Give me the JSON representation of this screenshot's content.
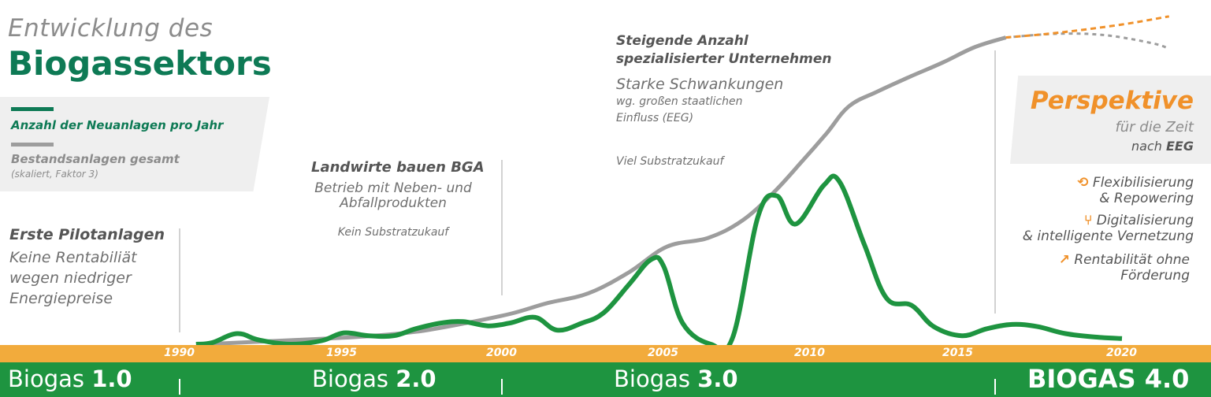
{
  "header": {
    "title_line1": "Entwicklung des",
    "title_line2": "Biogassektors"
  },
  "legend": {
    "new_label": "Anzahl der Neuanlagen pro Jahr",
    "total_label": "Bestandsanlagen gesamt",
    "total_note": "(skaliert, Faktor 3)"
  },
  "annotations": {
    "pilot": {
      "heading": "Erste Pilotanlagen",
      "lines": [
        "Keine Rentabiliät",
        "wegen niedriger",
        "Energiepreise"
      ]
    },
    "farmers": {
      "heading": "Landwirte bauen BGA",
      "lines": [
        "Betrieb mit Neben- und",
        "Abfallprodukten"
      ],
      "note": "Kein Substratzukauf"
    },
    "companies": {
      "heading_lines": [
        "Steigende Anzahl",
        "spezialisierter Unternehmen"
      ],
      "subheading": "Starke Schwankungen",
      "small_lines": [
        "wg. großen staatlichen",
        "Einfluss (EEG)"
      ],
      "note": "Viel Substratzukauf"
    }
  },
  "perspective": {
    "heading": "Perspektive",
    "sub1": "für die Zeit",
    "sub2_prefix": "nach ",
    "sub2_bold": "EEG",
    "items": [
      {
        "icon": "refresh-icon",
        "glyph": "⟲",
        "line1": "Flexibilisierung",
        "line2": "& Repowering"
      },
      {
        "icon": "network-icon",
        "glyph": "⑂",
        "line1": "Digitalisierung",
        "line2": "& intelligente Vernetzung"
      },
      {
        "icon": "trend-up-icon",
        "glyph": "↗",
        "line1": "Rentabilität ohne",
        "line2": "Förderung"
      }
    ]
  },
  "timeline": {
    "years": [
      "1990",
      "1995",
      "2000",
      "2005",
      "2010",
      "2015",
      "2020"
    ],
    "eras": [
      {
        "prefix": "Biogas ",
        "bold": "1.0"
      },
      {
        "prefix": "Biogas ",
        "bold": "2.0"
      },
      {
        "prefix": "Biogas ",
        "bold": "3.0"
      }
    ],
    "brand": "BIOGAS 4.0"
  },
  "colors": {
    "new_series": "#1e9440",
    "total_series": "#9d9d9d",
    "perspective": "#f0912a",
    "title_green": "#0e7a55"
  },
  "chart_data": {
    "type": "line",
    "title": "Entwicklung des Biogassektors",
    "xlim": [
      1990,
      2020
    ],
    "series": [
      {
        "name": "Anzahl der Neuanlagen pro Jahr",
        "color": "#1e9440",
        "x": [
          1990.5,
          1991,
          1991.8,
          1992.5,
          1993.5,
          1994.5,
          1995.2,
          1996,
          1996.8,
          1997.5,
          1998.3,
          1999,
          1999.8,
          2000.5,
          2001.3,
          2002,
          2002.8,
          2003.5,
          2004.3,
          2005,
          2005.4,
          2006,
          2006.9,
          2007.6,
          2008.4,
          2009,
          2009.6,
          2010.5,
          2011,
          2011.8,
          2012.5,
          2013.3,
          2014,
          2014.9,
          2015.7,
          2016.5,
          2017.3,
          2018.2,
          2019.2,
          2020
        ],
        "values": [
          0,
          20,
          150,
          60,
          -30,
          50,
          160,
          120,
          120,
          220,
          300,
          320,
          260,
          300,
          380,
          200,
          300,
          450,
          850,
          1200,
          1100,
          300,
          -80,
          100,
          1800,
          2100,
          1700,
          2250,
          2300,
          1400,
          650,
          550,
          250,
          120,
          220,
          280,
          250,
          150,
          100,
          80
        ]
      },
      {
        "name": "Bestandsanlagen gesamt",
        "color": "#9d9d9d",
        "x": [
          1990.5,
          1991.5,
          1993,
          1994.5,
          1996,
          1997.5,
          1999,
          2000.5,
          2001.7,
          2003,
          2004.3,
          2005.5,
          2006.8,
          2007.9,
          2008.9,
          2009.8,
          2010.6,
          2011.3,
          2012.2,
          2013.3,
          2014.3,
          2015.3,
          2016.3
        ],
        "values": [
          0,
          20,
          60,
          100,
          150,
          230,
          380,
          560,
          760,
          940,
          1330,
          1800,
          1960,
          2280,
          2800,
          3370,
          3900,
          4390,
          4660,
          4950,
          5200,
          5480,
          5660
        ]
      }
    ],
    "projection": {
      "line_up": {
        "color": "#f0912a",
        "x": [
          2016.3,
          2018,
          2020,
          2021.5
        ],
        "values": [
          5660,
          5750,
          5900,
          6050
        ]
      },
      "line_down": {
        "color": "#9d9d9d",
        "x": [
          2016.3,
          2018,
          2019.5,
          2021,
          2021.5
        ],
        "values": [
          5660,
          5730,
          5700,
          5550,
          5450
        ]
      }
    }
  }
}
